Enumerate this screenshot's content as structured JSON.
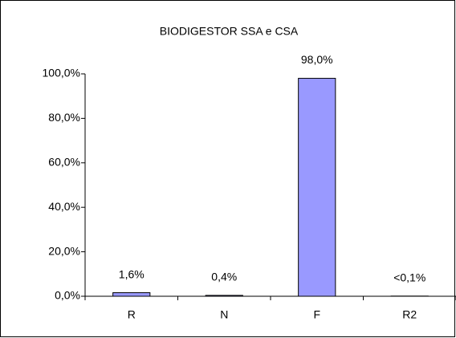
{
  "chart_data": {
    "type": "bar",
    "title": "BIODIGESTOR SSA e CSA",
    "categories": [
      "R",
      "N",
      "F",
      "R2"
    ],
    "values": [
      1.6,
      0.4,
      98.0,
      0.08
    ],
    "value_labels": [
      "1,6%",
      "0,4%",
      "98,0%",
      "<0,1%"
    ],
    "color": "#9999ff",
    "ylim": [
      0,
      100
    ],
    "yticks": [
      {
        "value": 0,
        "label": "0,0%"
      },
      {
        "value": 20,
        "label": "20,0%"
      },
      {
        "value": 40,
        "label": "40,0%"
      },
      {
        "value": 60,
        "label": "60,0%"
      },
      {
        "value": 80,
        "label": "80,0%"
      },
      {
        "value": 100,
        "label": "100,0%"
      }
    ],
    "grid": false
  }
}
